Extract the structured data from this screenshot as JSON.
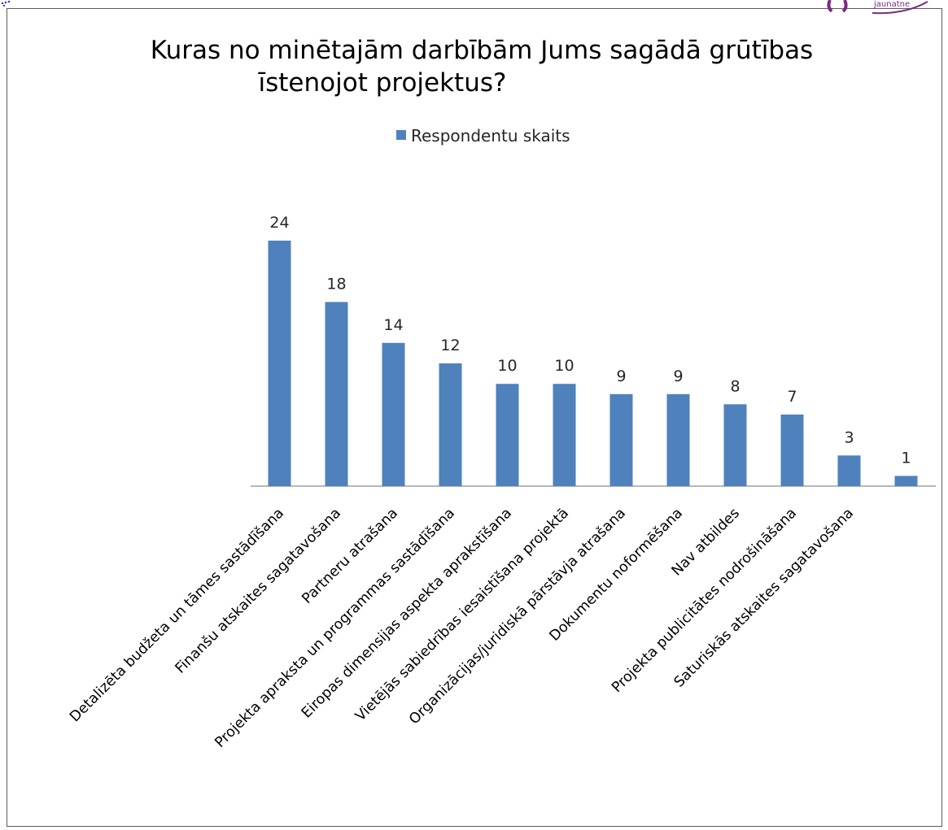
{
  "chart_data": {
    "type": "bar",
    "title_lines": [
      "Kuras no minētajām darbībām Jums sagādā grūtības",
      "īstenojot projektus?"
    ],
    "legend": {
      "series_name": "Respondentu skaits",
      "position": "top"
    },
    "categories": [
      "Detalizēta budžeta un tāmes sastādīšana",
      "Finanšu atskaites sagatavošana",
      "Partneru atrašana",
      "Projekta apraksta un programmas sastādīšana",
      "Eiropas dimensijas aspekta aprakstīšana",
      "Vietējās sabiedrības iesaistīšana projektā",
      "Organizācijas/juridiskā pārstāvja atrašana",
      "Dokumentu noformēšana",
      "Nav atbildes",
      "Projekta publicitātes nodrošināšana",
      "Saturiskās atskaites sagatavošana",
      ""
    ],
    "series": [
      {
        "name": "Respondentu skaits",
        "color": "#4f81bd",
        "values": [
          24,
          18,
          14,
          12,
          10,
          10,
          9,
          9,
          8,
          7,
          3,
          1
        ]
      }
    ],
    "ylim": [
      0,
      24
    ],
    "grid": false,
    "data_labels": true
  },
  "logo_right": {
    "text": "jaunatne",
    "color": "#7b2a7f"
  },
  "logo_left": {
    "color": "#3a4aa8"
  }
}
